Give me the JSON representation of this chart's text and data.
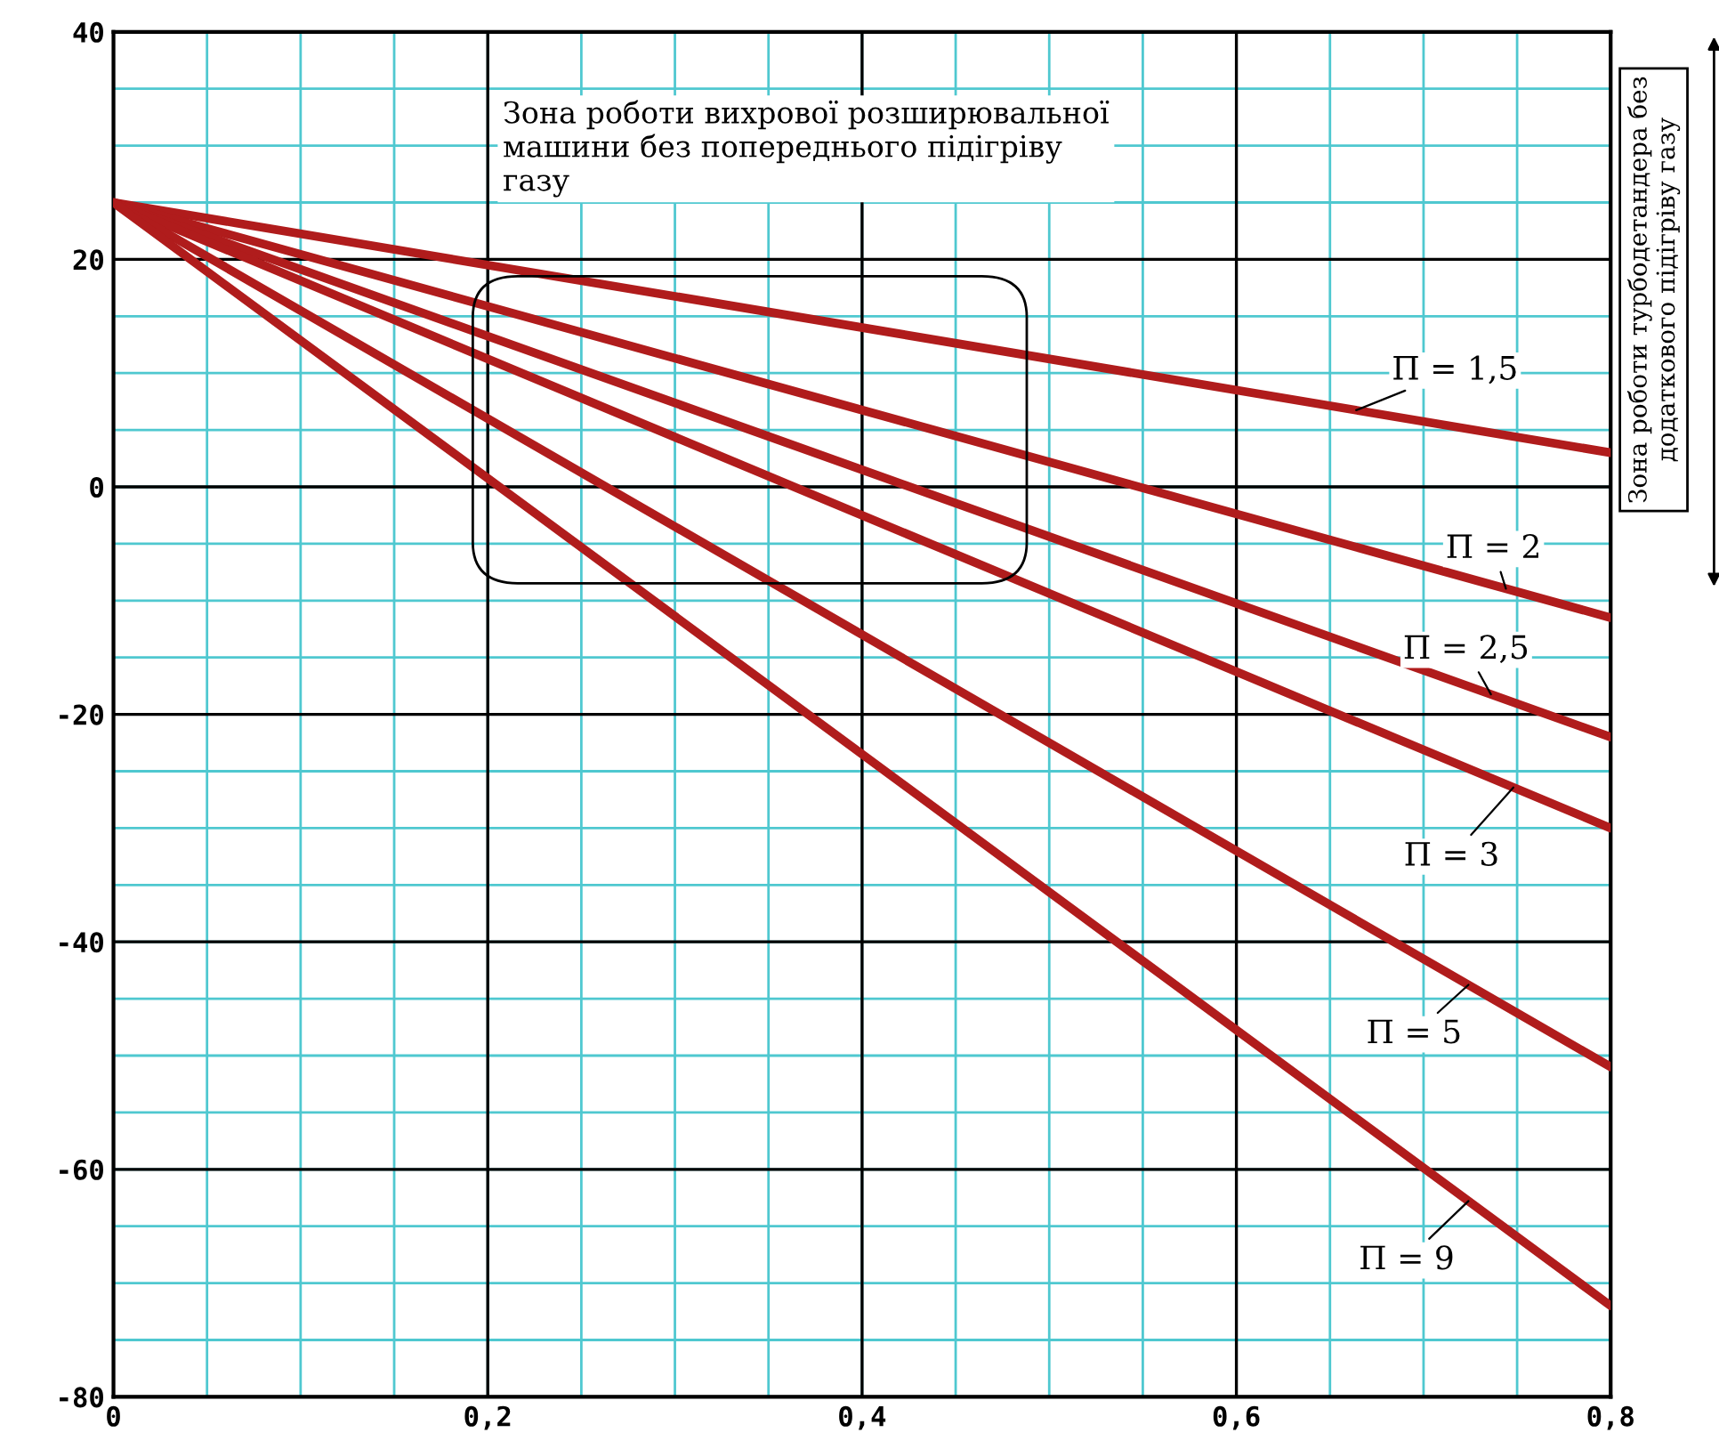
{
  "chart_data": {
    "type": "line",
    "x": [
      0,
      0.8
    ],
    "series": [
      {
        "name": "П = 1,5",
        "color": "#b01c1c",
        "values": [
          25,
          3
        ]
      },
      {
        "name": "П = 2",
        "color": "#b01c1c",
        "values": [
          25,
          -11.5
        ]
      },
      {
        "name": "П = 2,5",
        "color": "#b01c1c",
        "values": [
          25,
          -22
        ]
      },
      {
        "name": "П = 3",
        "color": "#b01c1c",
        "values": [
          25,
          -30
        ]
      },
      {
        "name": "П = 5",
        "color": "#b01c1c",
        "values": [
          25,
          -51
        ]
      },
      {
        "name": "П = 9",
        "color": "#b01c1c",
        "values": [
          25,
          -72
        ]
      }
    ],
    "xlim": [
      0,
      0.8
    ],
    "xticks": [
      0,
      {
        "value": 0.2,
        "label": "0,2"
      },
      {
        "value": 0.4,
        "label": "0,4"
      },
      {
        "value": 0.6,
        "label": "0,6"
      },
      {
        "value": 0.8,
        "label": "0,8"
      }
    ],
    "ylim": [
      -80,
      40
    ],
    "yticks": [
      -80,
      -60,
      -40,
      -20,
      0,
      20,
      40
    ],
    "grid": true,
    "line_style": "solid",
    "marker": "none",
    "annotations": [
      "Зона роботи вихрової розширювальної машини без попереднього підігріву газу",
      "Зона роботи турбодетандера без додаткового підігріву газу"
    ]
  }
}
